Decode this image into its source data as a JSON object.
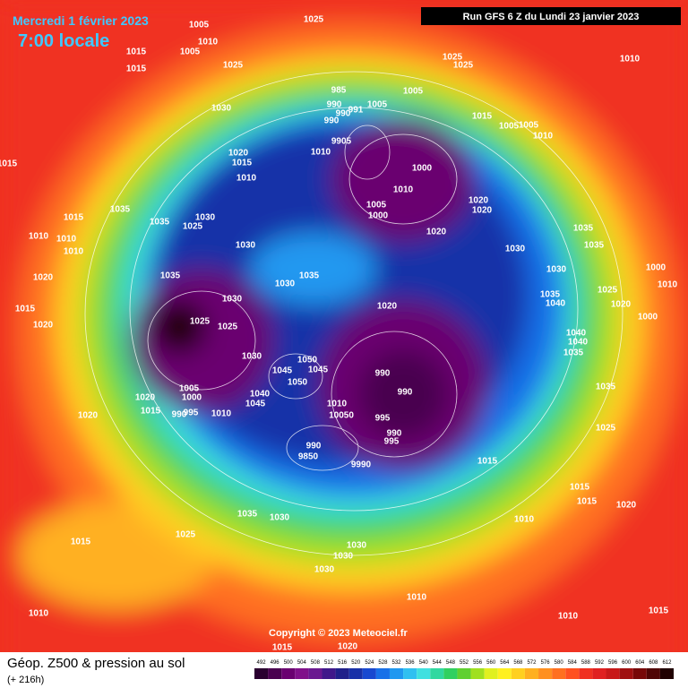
{
  "header": {
    "date": "Mercredi 1 février 2023",
    "time": "7:00 locale",
    "run": "Run GFS 6 Z du Lundi 23 janvier 2023"
  },
  "copyright": "Copyright © 2023 Meteociel.fr",
  "footer": {
    "title": "Géop. Z500 & pression au sol",
    "lead": "(+ 216h)"
  },
  "scale": {
    "labels": [
      492,
      496,
      500,
      504,
      508,
      512,
      516,
      520,
      524,
      528,
      532,
      536,
      540,
      544,
      548,
      552,
      556,
      560,
      564,
      568,
      572,
      576,
      580,
      584,
      588,
      592,
      596,
      600,
      604,
      608,
      612
    ],
    "colors": [
      "#2a0030",
      "#4a0050",
      "#6a0070",
      "#80108a",
      "#6a1890",
      "#40188a",
      "#20208a",
      "#1830a8",
      "#1848d0",
      "#1870e8",
      "#2098f0",
      "#30c0f0",
      "#40e0e0",
      "#30d8a0",
      "#30d060",
      "#60d030",
      "#a0e020",
      "#e0f020",
      "#fff020",
      "#ffd020",
      "#ffb020",
      "#ff9020",
      "#ff7020",
      "#ff5020",
      "#f03020",
      "#e02020",
      "#c81818",
      "#a01010",
      "#780808",
      "#500404",
      "#200000"
    ]
  },
  "isobar_labels": [
    1005,
    1010,
    1025,
    1015,
    1005,
    1015,
    1025,
    1025,
    1025,
    1010,
    1030,
    985,
    990,
    990,
    990,
    991,
    1005,
    1005,
    1015,
    1005,
    1005,
    1010,
    9905,
    1010,
    1000,
    1010,
    1020,
    1020,
    1005,
    1000,
    1020,
    1020,
    1015,
    1010,
    1015,
    1035,
    1035,
    1030,
    1025,
    1015,
    1010,
    1010,
    1010,
    1030,
    1030,
    1035,
    1035,
    1030,
    1000,
    1035,
    1030,
    1035,
    1030,
    1020,
    1015,
    1020,
    1020,
    1025,
    1025,
    1030,
    1035,
    1040,
    1025,
    1020,
    1000,
    1010,
    1040,
    1040,
    1035,
    1050,
    1045,
    1045,
    1050,
    1040,
    1045,
    1005,
    1000,
    1020,
    1015,
    990,
    995,
    1010,
    990,
    990,
    1010,
    10050,
    995,
    990,
    995,
    990,
    9850,
    9990,
    1035,
    1025,
    1015,
    1015,
    1015,
    1020,
    1010,
    1035,
    1030,
    1025,
    1015,
    1030,
    1030,
    1030,
    1010,
    1010,
    1010,
    1015,
    1015,
    1020,
    1020
  ]
}
